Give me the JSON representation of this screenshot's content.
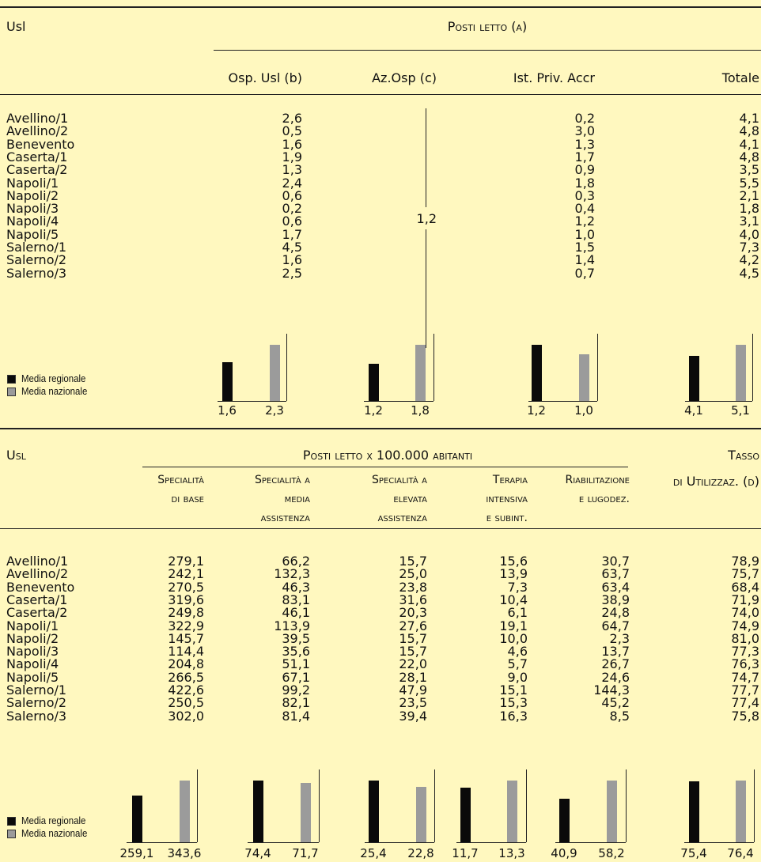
{
  "colors": {
    "background": "#fff8bf",
    "regional": "#0a0a0a",
    "national": "#9b9b9b"
  },
  "table1": {
    "usl_header": "Usl",
    "group_header": "Posti letto (a)",
    "columns": [
      "Osp. Usl (b)",
      "Az.Osp (c)",
      "Ist. Priv. Accr",
      "Totale"
    ],
    "merged_value": "1,2",
    "rows": [
      {
        "usl": "Avellino/1",
        "osp": "2,6",
        "priv": "0,2",
        "tot": "4,1"
      },
      {
        "usl": "Avellino/2",
        "osp": "0,5",
        "priv": "3,0",
        "tot": "4,8"
      },
      {
        "usl": "Benevento",
        "osp": "1,6",
        "priv": "1,3",
        "tot": "4,1"
      },
      {
        "usl": "Caserta/1",
        "osp": "1,9",
        "priv": "1,7",
        "tot": "4,8"
      },
      {
        "usl": "Caserta/2",
        "osp": "1,3",
        "priv": "0,9",
        "tot": "3,5"
      },
      {
        "usl": "Napoli/1",
        "osp": "2,4",
        "priv": "1,8",
        "tot": "5,5"
      },
      {
        "usl": "Napoli/2",
        "osp": "0,6",
        "priv": "0,3",
        "tot": "2,1"
      },
      {
        "usl": "Napoli/3",
        "osp": "0,2",
        "priv": "0,4",
        "tot": "1,8"
      },
      {
        "usl": "Napoli/4",
        "osp": "0,6",
        "priv": "1,2",
        "tot": "3,1"
      },
      {
        "usl": "Napoli/5",
        "osp": "1,7",
        "priv": "1,0",
        "tot": "4,0"
      },
      {
        "usl": "Salerno/1",
        "osp": "4,5",
        "priv": "1,5",
        "tot": "7,3"
      },
      {
        "usl": "Salerno/2",
        "osp": "1,6",
        "priv": "1,4",
        "tot": "4,2"
      },
      {
        "usl": "Salerno/3",
        "osp": "2,5",
        "priv": "0,7",
        "tot": "4,5"
      }
    ],
    "legend": {
      "regional": "Media regionale",
      "national": "Media nazionale"
    },
    "charts": [
      {
        "regional": 1.6,
        "national": 2.3,
        "regional_label": "1,6",
        "national_label": "2,3"
      },
      {
        "regional": 1.2,
        "national": 1.8,
        "regional_label": "1,2",
        "national_label": "1,8"
      },
      {
        "regional": 1.2,
        "national": 1.0,
        "regional_label": "1,2",
        "national_label": "1,0"
      },
      {
        "regional": 4.1,
        "national": 5.1,
        "regional_label": "4,1",
        "national_label": "5,1"
      }
    ]
  },
  "table2": {
    "usl_header": "Usl",
    "group_header": "Posti letto x 100.000 abitanti",
    "tasso_header": [
      "Tasso",
      "di Utilizzaz. (d)"
    ],
    "columns": [
      [
        "Specialità",
        "di base"
      ],
      [
        "Specialità a",
        "media",
        "assistenza"
      ],
      [
        "Specialità a",
        "elevata",
        "assistenza"
      ],
      [
        "Terapia",
        "intensiva",
        "e subint."
      ],
      [
        "Riabilitazione",
        "e lugodez."
      ]
    ],
    "rows": [
      {
        "usl": "Avellino/1",
        "v": [
          "279,1",
          "66,2",
          "15,7",
          "15,6",
          "30,7",
          "78,9"
        ]
      },
      {
        "usl": "Avellino/2",
        "v": [
          "242,1",
          "132,3",
          "25,0",
          "13,9",
          "63,7",
          "75,7"
        ]
      },
      {
        "usl": "Benevento",
        "v": [
          "270,5",
          "46,3",
          "23,8",
          "7,3",
          "63,4",
          "68,4"
        ]
      },
      {
        "usl": "Caserta/1",
        "v": [
          "319,6",
          "83,1",
          "31,6",
          "10,4",
          "38,9",
          "71,9"
        ]
      },
      {
        "usl": "Caserta/2",
        "v": [
          "249,8",
          "46,1",
          "20,3",
          "6,1",
          "24,8",
          "74,0"
        ]
      },
      {
        "usl": "Napoli/1",
        "v": [
          "322,9",
          "113,9",
          "27,6",
          "19,1",
          "64,7",
          "74,9"
        ]
      },
      {
        "usl": "Napoli/2",
        "v": [
          "145,7",
          "39,5",
          "15,7",
          "10,0",
          "2,3",
          "81,0"
        ]
      },
      {
        "usl": "Napoli/3",
        "v": [
          "114,4",
          "35,6",
          "15,7",
          "4,6",
          "13,7",
          "77,3"
        ]
      },
      {
        "usl": "Napoli/4",
        "v": [
          "204,8",
          "51,1",
          "22,0",
          "5,7",
          "26,7",
          "76,3"
        ]
      },
      {
        "usl": "Napoli/5",
        "v": [
          "266,5",
          "67,1",
          "28,1",
          "9,0",
          "24,6",
          "74,7"
        ]
      },
      {
        "usl": "Salerno/1",
        "v": [
          "422,6",
          "99,2",
          "47,9",
          "15,1",
          "144,3",
          "77,7"
        ]
      },
      {
        "usl": "Salerno/2",
        "v": [
          "250,5",
          "82,1",
          "23,5",
          "15,3",
          "45,2",
          "77,4"
        ]
      },
      {
        "usl": "Salerno/3",
        "v": [
          "302,0",
          "81,4",
          "39,4",
          "16,3",
          "8,5",
          "75,8"
        ]
      }
    ],
    "legend": {
      "regional": "Media regionale",
      "national": "Media nazionale"
    },
    "charts": [
      {
        "regional": 259.1,
        "national": 343.6,
        "regional_label": "259,1",
        "national_label": "343,6"
      },
      {
        "regional": 74.4,
        "national": 71.7,
        "regional_label": "74,4",
        "national_label": "71,7"
      },
      {
        "regional": 25.4,
        "national": 22.8,
        "regional_label": "25,4",
        "national_label": "22,8"
      },
      {
        "regional": 11.7,
        "national": 13.3,
        "regional_label": "11,7",
        "national_label": "13,3"
      },
      {
        "regional": 40.9,
        "national": 58.2,
        "regional_label": "40,9",
        "national_label": "58,2"
      },
      {
        "regional": 75.4,
        "national": 76.4,
        "regional_label": "75,4",
        "national_label": "76,4"
      }
    ]
  }
}
